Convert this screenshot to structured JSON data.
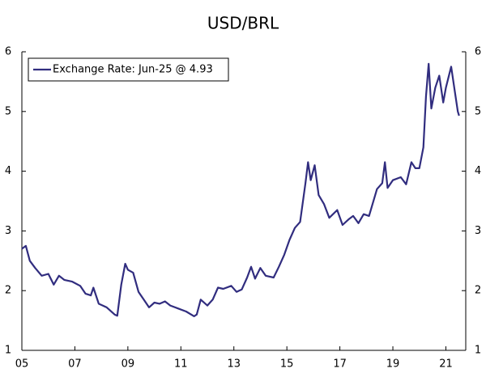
{
  "chart_data": {
    "type": "line",
    "title": "USD/BRL",
    "x": [
      2005.0,
      2005.15,
      2005.3,
      2005.5,
      2005.75,
      2006.0,
      2006.2,
      2006.4,
      2006.6,
      2006.9,
      2007.2,
      2007.4,
      2007.6,
      2007.7,
      2007.9,
      2008.2,
      2008.5,
      2008.6,
      2008.75,
      2008.9,
      2009.0,
      2009.2,
      2009.4,
      2009.6,
      2009.8,
      2010.0,
      2010.2,
      2010.4,
      2010.6,
      2010.9,
      2011.2,
      2011.5,
      2011.6,
      2011.75,
      2012.0,
      2012.2,
      2012.4,
      2012.6,
      2012.9,
      2013.1,
      2013.3,
      2013.5,
      2013.65,
      2013.8,
      2014.0,
      2014.2,
      2014.5,
      2014.7,
      2014.9,
      2015.1,
      2015.3,
      2015.5,
      2015.7,
      2015.8,
      2015.9,
      2016.05,
      2016.2,
      2016.4,
      2016.6,
      2016.9,
      2017.1,
      2017.35,
      2017.5,
      2017.7,
      2017.9,
      2018.1,
      2018.4,
      2018.6,
      2018.7,
      2018.8,
      2019.0,
      2019.3,
      2019.5,
      2019.7,
      2019.85,
      2020.0,
      2020.15,
      2020.25,
      2020.35,
      2020.45,
      2020.6,
      2020.75,
      2020.9,
      2021.0,
      2021.2,
      2021.35,
      2021.45,
      2021.5
    ],
    "series": [
      {
        "name": "Exchange Rate: Jun-25 @ 4.93",
        "color": "#312d7f",
        "values": [
          2.7,
          2.75,
          2.5,
          2.38,
          2.25,
          2.28,
          2.1,
          2.25,
          2.18,
          2.15,
          2.08,
          1.95,
          1.92,
          2.05,
          1.78,
          1.72,
          1.6,
          1.58,
          2.1,
          2.45,
          2.35,
          2.3,
          1.98,
          1.85,
          1.72,
          1.8,
          1.78,
          1.82,
          1.75,
          1.7,
          1.65,
          1.57,
          1.6,
          1.85,
          1.75,
          1.85,
          2.05,
          2.03,
          2.08,
          1.98,
          2.02,
          2.22,
          2.4,
          2.2,
          2.38,
          2.25,
          2.22,
          2.4,
          2.6,
          2.85,
          3.05,
          3.15,
          3.8,
          4.15,
          3.85,
          4.1,
          3.6,
          3.45,
          3.22,
          3.35,
          3.1,
          3.2,
          3.25,
          3.13,
          3.28,
          3.25,
          3.7,
          3.8,
          4.15,
          3.72,
          3.85,
          3.9,
          3.78,
          4.15,
          4.05,
          4.05,
          4.4,
          5.25,
          5.8,
          5.05,
          5.4,
          5.6,
          5.15,
          5.4,
          5.75,
          5.3,
          5.0,
          4.93
        ]
      }
    ],
    "xlim": [
      2005,
      2021.75
    ],
    "xticks": [
      {
        "value": 2005,
        "label": "05"
      },
      {
        "value": 2007,
        "label": "07"
      },
      {
        "value": 2009,
        "label": "09"
      },
      {
        "value": 2011,
        "label": "11"
      },
      {
        "value": 2013,
        "label": "13"
      },
      {
        "value": 2015,
        "label": "15"
      },
      {
        "value": 2017,
        "label": "17"
      },
      {
        "value": 2019,
        "label": "19"
      },
      {
        "value": 2021,
        "label": "21"
      }
    ],
    "ylim": [
      1,
      6
    ],
    "yticks": [
      1,
      2,
      3,
      4,
      5,
      6
    ],
    "y2lim": [
      1,
      6
    ],
    "y2ticks": [
      1,
      2,
      3,
      4,
      5,
      6
    ],
    "grid": false,
    "legend": "upper left"
  }
}
